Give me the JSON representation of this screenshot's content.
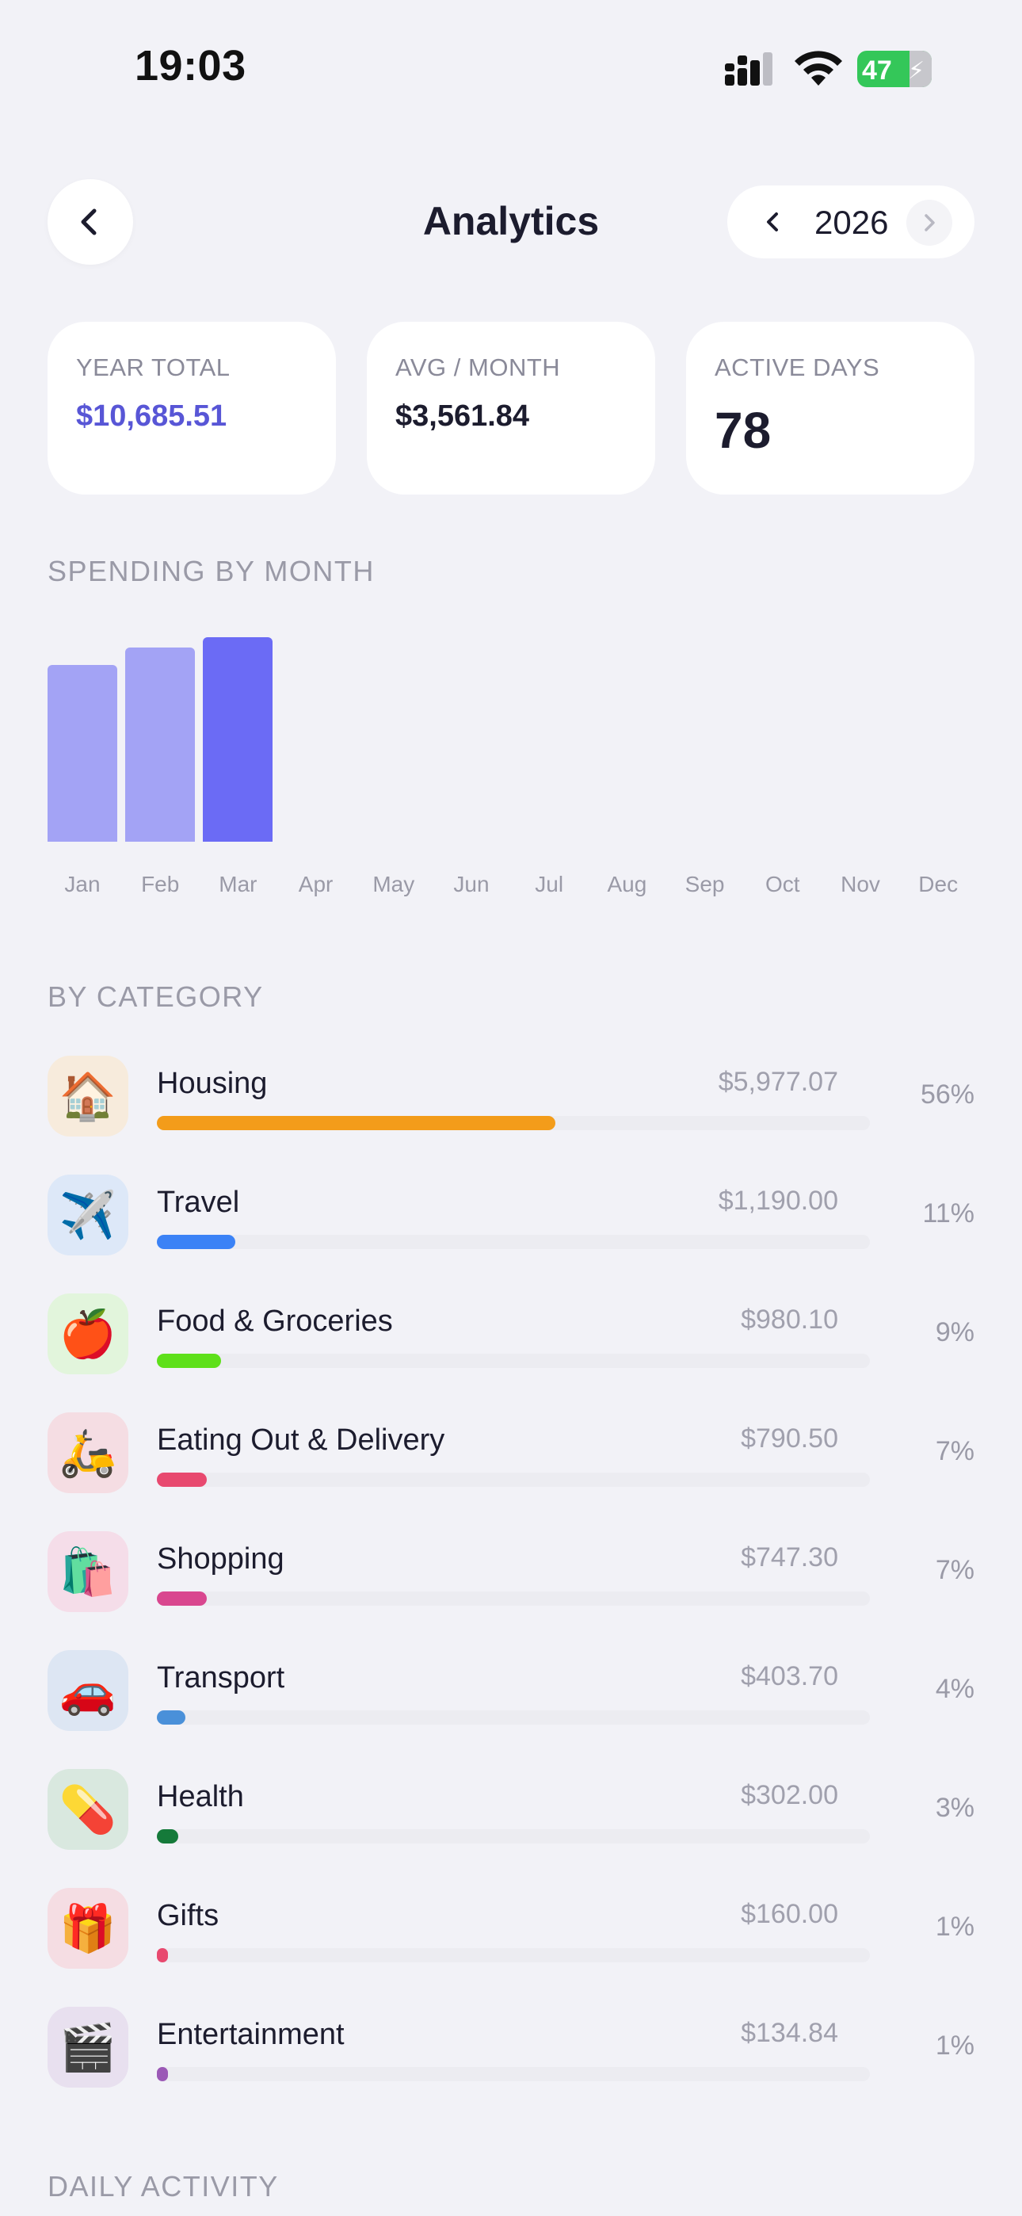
{
  "status_bar": {
    "time": "19:03",
    "battery": "47"
  },
  "header": {
    "title": "Analytics",
    "year": "2026"
  },
  "stats": [
    {
      "label": "YEAR TOTAL",
      "value": "$10,685.51"
    },
    {
      "label": "AVG / MONTH",
      "value": "$3,561.84"
    },
    {
      "label": "ACTIVE DAYS",
      "value": "78"
    }
  ],
  "spending_section": {
    "title": "SPENDING BY MONTH"
  },
  "chart_data": {
    "type": "bar",
    "categories": [
      "Jan",
      "Feb",
      "Mar",
      "Apr",
      "May",
      "Jun",
      "Jul",
      "Aug",
      "Sep",
      "Oct",
      "Nov",
      "Dec"
    ],
    "values": [
      3280,
      3610,
      3795,
      0,
      0,
      0,
      0,
      0,
      0,
      0,
      0,
      0
    ],
    "title": "",
    "xlabel": "",
    "ylabel": "",
    "colors": {
      "past": "#a3a3f5",
      "current": "#6b6bf5"
    }
  },
  "category_section": {
    "title": "BY CATEGORY"
  },
  "categories": [
    {
      "name": "Housing",
      "amount": "$5,977.07",
      "percent": "56%",
      "emoji": "🏠",
      "icon": "house-icon",
      "color": "#f39c1a",
      "bg": "#f7ebdc",
      "share": 0.56
    },
    {
      "name": "Travel",
      "amount": "$1,190.00",
      "percent": "11%",
      "emoji": "✈️",
      "icon": "airplane-icon",
      "color": "#3b82f6",
      "bg": "#dde8f8",
      "share": 0.11
    },
    {
      "name": "Food & Groceries",
      "amount": "$980.10",
      "percent": "9%",
      "emoji": "🍎",
      "icon": "apple-icon",
      "color": "#5ee01a",
      "bg": "#e2f5dc",
      "share": 0.09
    },
    {
      "name": "Eating Out & Delivery",
      "amount": "$790.50",
      "percent": "7%",
      "emoji": "🛵",
      "icon": "scooter-icon",
      "color": "#e8496f",
      "bg": "#f5dde3",
      "share": 0.07
    },
    {
      "name": "Shopping",
      "amount": "$747.30",
      "percent": "7%",
      "emoji": "🛍️",
      "icon": "shopping-bags-icon",
      "color": "#d9478f",
      "bg": "#f5dde9",
      "share": 0.07
    },
    {
      "name": "Transport",
      "amount": "$403.70",
      "percent": "4%",
      "emoji": "🚗",
      "icon": "car-icon",
      "color": "#4a90d9",
      "bg": "#dde6f3",
      "share": 0.04
    },
    {
      "name": "Health",
      "amount": "$302.00",
      "percent": "3%",
      "emoji": "💊",
      "icon": "pill-icon",
      "color": "#157a3a",
      "bg": "#d9e8df",
      "share": 0.03
    },
    {
      "name": "Gifts",
      "amount": "$160.00",
      "percent": "1%",
      "emoji": "🎁",
      "icon": "gift-icon",
      "color": "#e8496f",
      "bg": "#f5dde3",
      "share": 0.01
    },
    {
      "name": "Entertainment",
      "amount": "$134.84",
      "percent": "1%",
      "emoji": "🎬",
      "icon": "clapperboard-icon",
      "color": "#9b59b6",
      "bg": "#e8e0ef",
      "share": 0.01
    }
  ],
  "daily_section": {
    "title": "DAILY ACTIVITY"
  }
}
